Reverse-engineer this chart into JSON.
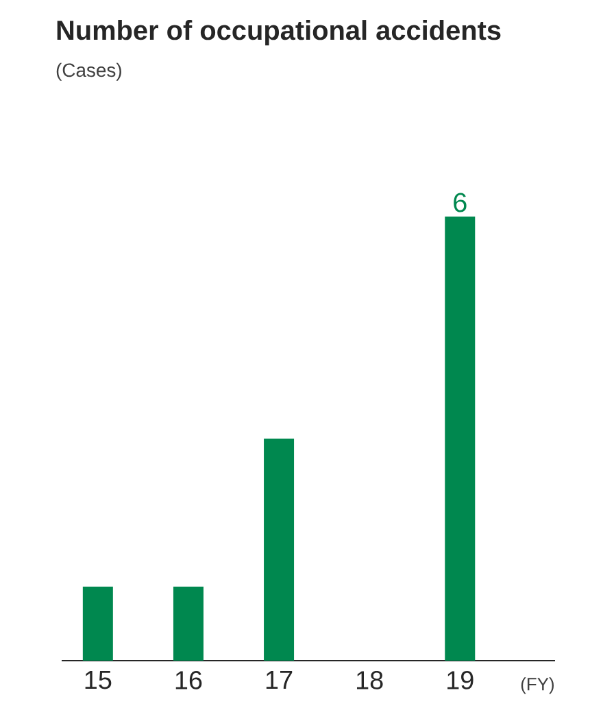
{
  "chart_data": {
    "type": "bar",
    "title": "Number of occupational accidents",
    "xlabel": "(FY)",
    "annotations": [
      "(Cases)"
    ],
    "categories": [
      "15",
      "16",
      "17",
      "18",
      "19"
    ],
    "values": [
      1,
      1,
      3,
      0,
      6
    ],
    "value_labels": [
      null,
      null,
      null,
      null,
      "6"
    ],
    "color": "#00884f",
    "tick_labels": "x"
  }
}
